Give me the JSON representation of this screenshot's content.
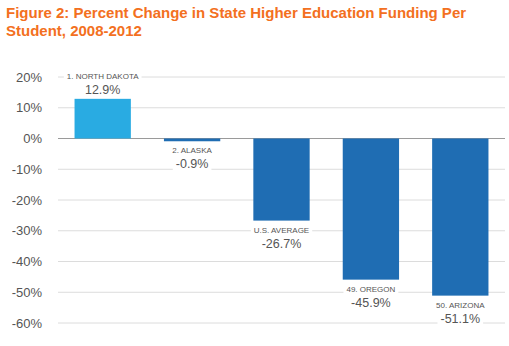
{
  "chart_data": {
    "type": "bar",
    "title": "Figure 2: Percent Change in State Higher Education Funding Per Student, 2008-2012",
    "categories": [
      "1. NORTH DAKOTA",
      "2. ALASKA",
      "U.S. AVERAGE",
      "49. OREGON",
      "50. ARIZONA"
    ],
    "values": [
      12.9,
      -0.9,
      -26.7,
      -45.9,
      -51.1
    ],
    "value_labels": [
      "12.9%",
      "-0.9%",
      "-26.7%",
      "-45.9%",
      "-51.1%"
    ],
    "colors": [
      "#29abe2",
      "#1f6db3",
      "#1f6db3",
      "#1f6db3",
      "#1f6db3"
    ],
    "ylim": [
      -60,
      20
    ],
    "yticks": [
      {
        "value": 20,
        "label": "20%"
      },
      {
        "value": 10,
        "label": "10%"
      },
      {
        "value": 0,
        "label": "0%"
      },
      {
        "value": -10,
        "label": "-10%"
      },
      {
        "value": -20,
        "label": "-20%"
      },
      {
        "value": -30,
        "label": "-30%"
      },
      {
        "value": -40,
        "label": "-40%"
      },
      {
        "value": -50,
        "label": "-50%"
      },
      {
        "value": -60,
        "label": "-60%"
      }
    ],
    "grid": true,
    "data_labels": true
  }
}
